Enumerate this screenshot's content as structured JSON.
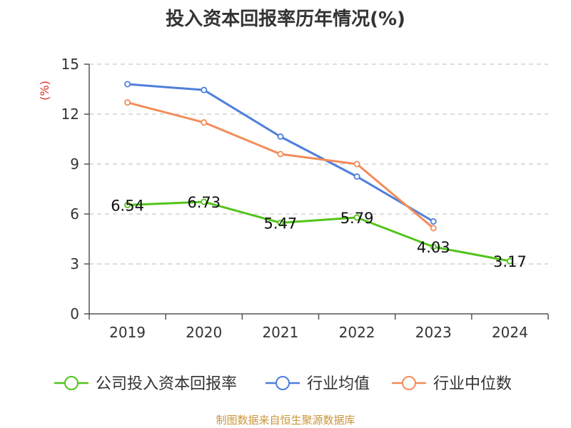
{
  "title": "投入资本回报率历年情况(%)",
  "source": "制图数据来自恒生聚源数据库",
  "chart_data": {
    "type": "line",
    "title": "投入资本回报率历年情况(%)",
    "ylabel": "(%)",
    "xlabel": "",
    "categories": [
      "2019",
      "2020",
      "2021",
      "2022",
      "2023",
      "2024"
    ],
    "y_ticks": [
      "0",
      "3",
      "6",
      "9",
      "12",
      "15"
    ],
    "ylim": [
      0,
      15
    ],
    "grid": "horizontal dashed",
    "legend_position": "bottom",
    "series": [
      {
        "name": "公司投入资本回报率",
        "color": "#52c41a",
        "values": [
          6.54,
          6.73,
          5.47,
          5.79,
          4.03,
          3.17
        ],
        "labels": [
          "6.54",
          "6.73",
          "5.47",
          "5.79",
          "4.03",
          "3.17"
        ]
      },
      {
        "name": "行业均值",
        "color": "#4e7fdc",
        "values": [
          13.8,
          13.45,
          10.65,
          8.25,
          5.55,
          null
        ]
      },
      {
        "name": "行业中位数",
        "color": "#f28c5a",
        "values": [
          12.7,
          11.5,
          9.6,
          9.0,
          5.15,
          null
        ]
      }
    ]
  }
}
